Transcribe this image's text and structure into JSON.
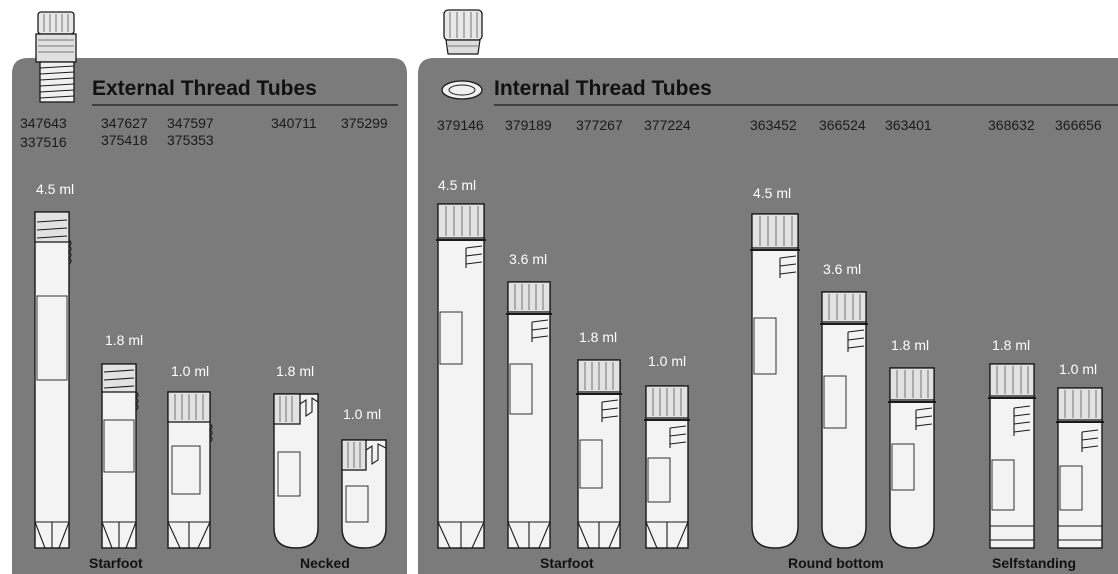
{
  "panels": [
    {
      "id": "external",
      "title": "External Thread Tubes",
      "codes": [
        "347643",
        "337516",
        "347627",
        "375418",
        "347597",
        "375353",
        "340711",
        "375299"
      ],
      "volumes": [
        "4.5 ml",
        "1.8 ml",
        "1.0 ml",
        "1.8 ml",
        "1.0 ml"
      ],
      "groups": [
        "Starfoot",
        "Necked"
      ]
    },
    {
      "id": "internal",
      "title": "Internal Thread Tubes",
      "codes": [
        "379146",
        "379189",
        "377267",
        "377224",
        "363452",
        "366524",
        "363401",
        "368632",
        "366656"
      ],
      "volumes": [
        "4.5 ml",
        "3.6 ml",
        "1.8 ml",
        "1.0 ml",
        "4.5 ml",
        "3.6 ml",
        "1.8 ml",
        "1.8 ml",
        "1.0 ml"
      ],
      "groups": [
        "Starfoot",
        "Round bottom",
        "Selfstanding"
      ]
    }
  ],
  "tubes": [
    {
      "panel": "external",
      "volume": "4.5 ml",
      "bottom": "starfoot",
      "thread": "external"
    },
    {
      "panel": "external",
      "volume": "1.8 ml",
      "bottom": "starfoot",
      "thread": "external"
    },
    {
      "panel": "external",
      "volume": "1.0 ml",
      "bottom": "starfoot",
      "thread": "external"
    },
    {
      "panel": "external",
      "volume": "1.8 ml",
      "bottom": "necked",
      "thread": "external"
    },
    {
      "panel": "external",
      "volume": "1.0 ml",
      "bottom": "necked",
      "thread": "external"
    },
    {
      "panel": "internal",
      "volume": "4.5 ml",
      "bottom": "starfoot",
      "thread": "internal"
    },
    {
      "panel": "internal",
      "volume": "3.6 ml",
      "bottom": "starfoot",
      "thread": "internal"
    },
    {
      "panel": "internal",
      "volume": "1.8 ml",
      "bottom": "starfoot",
      "thread": "internal"
    },
    {
      "panel": "internal",
      "volume": "1.0 ml",
      "bottom": "starfoot",
      "thread": "internal"
    },
    {
      "panel": "internal",
      "volume": "4.5 ml",
      "bottom": "round",
      "thread": "internal"
    },
    {
      "panel": "internal",
      "volume": "3.6 ml",
      "bottom": "round",
      "thread": "internal"
    },
    {
      "panel": "internal",
      "volume": "1.8 ml",
      "bottom": "round",
      "thread": "internal"
    },
    {
      "panel": "internal",
      "volume": "1.8 ml",
      "bottom": "selfstanding",
      "thread": "internal"
    },
    {
      "panel": "internal",
      "volume": "1.0 ml",
      "bottom": "selfstanding",
      "thread": "internal"
    }
  ],
  "colors": {
    "panel": "#7b7b7b",
    "tube": "#f3f3f3",
    "outline": "#1a1a1a",
    "volume_text": "#ffffff",
    "title_text": "#111111"
  }
}
